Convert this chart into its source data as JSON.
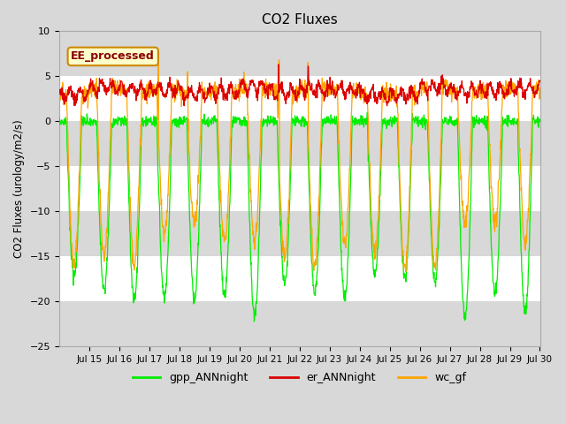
{
  "title": "CO2 Fluxes",
  "ylabel": "CO2 Fluxes (urology/m2/s)",
  "ylim": [
    -25,
    10
  ],
  "yticks": [
    -25,
    -20,
    -15,
    -10,
    -5,
    0,
    5,
    10
  ],
  "bg_color": "#d8d8d8",
  "band_white": "#ffffff",
  "band_gray": "#d8d8d8",
  "line_green": "#00ee00",
  "line_red": "#dd0000",
  "line_orange": "#ffa500",
  "legend_box_label": "EE_processed",
  "legend_box_facecolor": "#ffffcc",
  "legend_box_edgecolor": "#cc8800",
  "legend_box_textcolor": "#880000",
  "legend_labels": [
    "gpp_ANNnight",
    "er_ANNnight",
    "wc_gf"
  ],
  "n_days": 16,
  "points_per_day": 96
}
